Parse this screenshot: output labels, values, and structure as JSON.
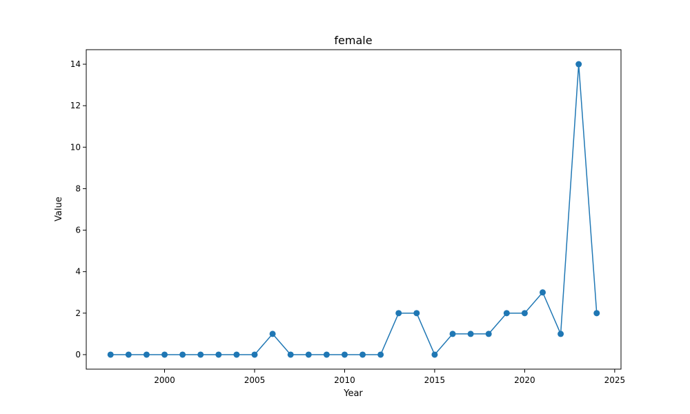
{
  "chart_data": {
    "type": "line",
    "title": "female",
    "xlabel": "Year",
    "ylabel": "Value",
    "x": [
      1997,
      1998,
      1999,
      2000,
      2001,
      2002,
      2003,
      2004,
      2005,
      2006,
      2007,
      2008,
      2009,
      2010,
      2011,
      2012,
      2013,
      2014,
      2015,
      2016,
      2017,
      2018,
      2019,
      2020,
      2021,
      2022,
      2023,
      2024
    ],
    "series": [
      {
        "values": [
          0,
          0,
          0,
          0,
          0,
          0,
          0,
          0,
          0,
          1,
          0,
          0,
          0,
          0,
          0,
          0,
          2,
          2,
          0,
          1,
          1,
          1,
          2,
          2,
          3,
          1,
          14,
          2
        ]
      }
    ],
    "xlim": [
      1995.65,
      2025.35
    ],
    "ylim": [
      -0.7,
      14.7
    ],
    "xticks": [
      2000,
      2005,
      2010,
      2015,
      2020,
      2025
    ],
    "yticks": [
      0,
      2,
      4,
      6,
      8,
      10,
      12,
      14
    ],
    "grid": false,
    "line_color": "#1f77b4",
    "axis_color": "#000000"
  }
}
